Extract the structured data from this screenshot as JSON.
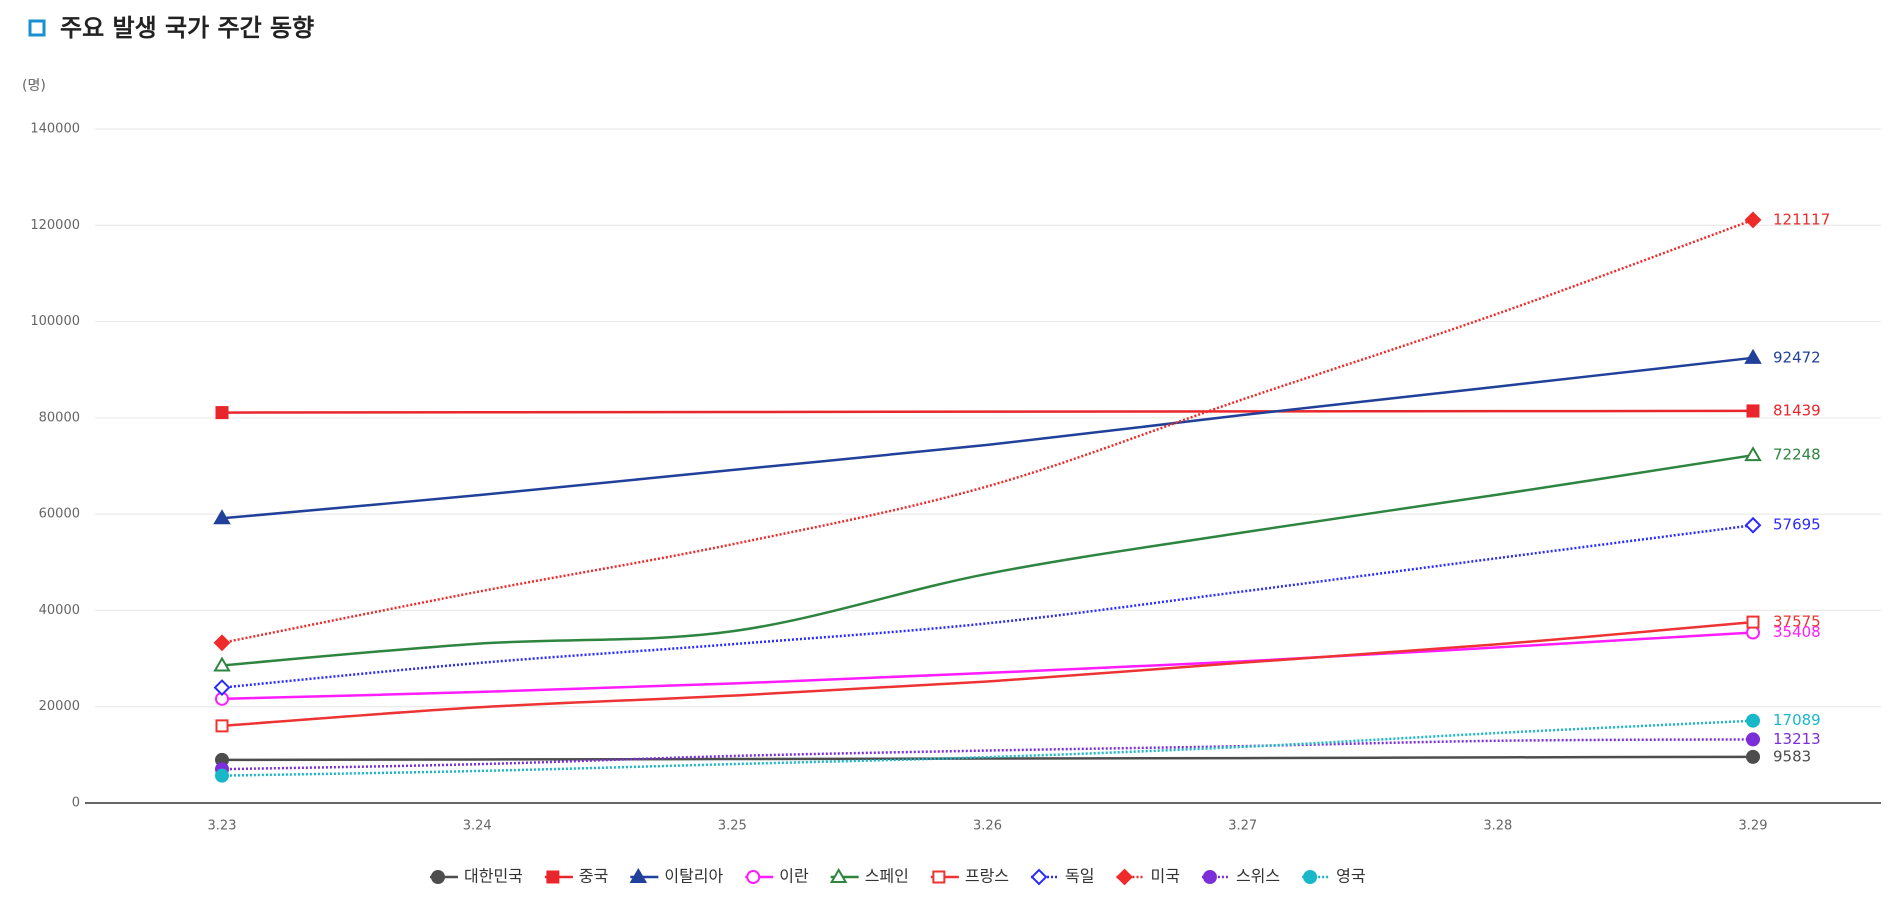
{
  "chart_data": {
    "type": "line",
    "title": "주요 발생 국가 주간 동향",
    "y_unit": "(명)",
    "categories": [
      "3.23",
      "3.24",
      "3.25",
      "3.26",
      "3.27",
      "3.28",
      "3.29"
    ],
    "ylim": [
      0,
      140000
    ],
    "yticks": [
      0,
      20000,
      40000,
      60000,
      80000,
      100000,
      120000,
      140000
    ],
    "grid": true,
    "series": [
      {
        "name": "대한민국",
        "color": "#4d4d4d",
        "marker": "circle",
        "filled": true,
        "dotted": false,
        "values": [
          8961,
          9037,
          9137,
          9241,
          9332,
          9478,
          9583
        ]
      },
      {
        "name": "중국",
        "color": "#e8262b",
        "marker": "square",
        "filled": true,
        "dotted": false,
        "values": [
          81093,
          81171,
          81218,
          81285,
          81340,
          81394,
          81439
        ]
      },
      {
        "name": "이탈리아",
        "color": "#21409a",
        "marker": "triangle",
        "filled": true,
        "dotted": false,
        "values": [
          59138,
          63927,
          69176,
          74386,
          80589,
          86498,
          92472
        ]
      },
      {
        "name": "이란",
        "color": "#ff1cff",
        "marker": "circle",
        "filled": false,
        "dotted": false,
        "values": [
          21638,
          23049,
          24811,
          27017,
          29406,
          32332,
          35408
        ]
      },
      {
        "name": "스페인",
        "color": "#2e8540",
        "marker": "triangle",
        "filled": false,
        "dotted": false,
        "values": [
          28572,
          33089,
          35673,
          47610,
          56188,
          64059,
          72248
        ]
      },
      {
        "name": "프랑스",
        "color": "#ee3333",
        "marker": "square",
        "filled": false,
        "dotted": false,
        "values": [
          16018,
          19856,
          22302,
          25233,
          29155,
          32964,
          37575
        ]
      },
      {
        "name": "독일",
        "color": "#2b2bff",
        "marker": "diamond",
        "filled": false,
        "dotted": true,
        "values": [
          23974,
          29056,
          32986,
          37323,
          43938,
          50871,
          57695
        ]
      },
      {
        "name": "미국",
        "color": "#ee2a2a",
        "marker": "diamond",
        "filled": true,
        "dotted": true,
        "values": [
          33276,
          43847,
          53740,
          65778,
          83836,
          101657,
          121117
        ]
      },
      {
        "name": "스위스",
        "color": "#7b2fd8",
        "marker": "circle",
        "filled": true,
        "dotted": true,
        "values": [
          7014,
          8060,
          9765,
          10897,
          11811,
          12928,
          13213
        ]
      },
      {
        "name": "영국",
        "color": "#19b8c8",
        "marker": "circle",
        "filled": true,
        "dotted": true,
        "values": [
          5683,
          6650,
          8077,
          9529,
          11658,
          14543,
          17089
        ]
      }
    ]
  }
}
